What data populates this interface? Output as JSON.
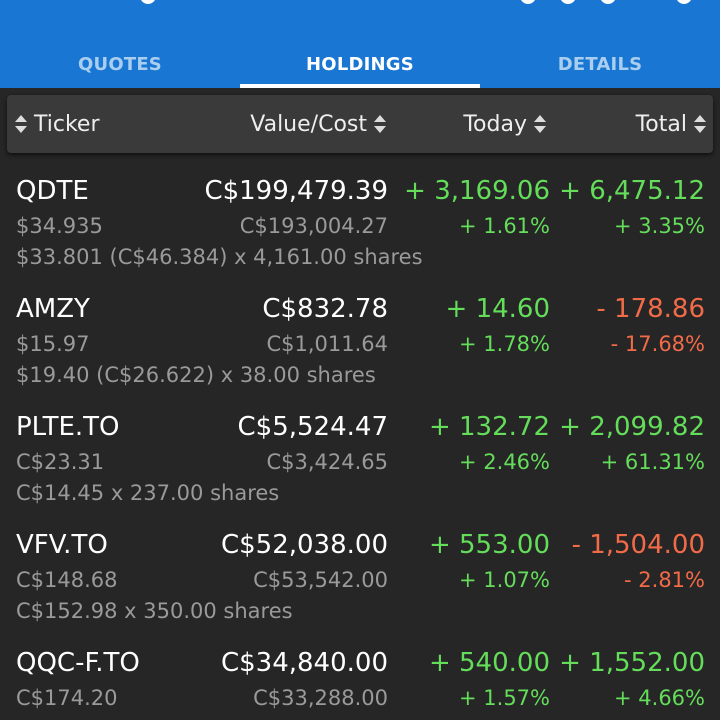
{
  "tabs": [
    {
      "label": "QUOTES",
      "active": false
    },
    {
      "label": "HOLDINGS",
      "active": true
    },
    {
      "label": "DETAILS",
      "active": false
    }
  ],
  "header": {
    "ticker": "Ticker",
    "value_cost": "Value/Cost",
    "today": "Today",
    "total": "Total"
  },
  "colors": {
    "appbar": "#1976d2",
    "positive": "#64dd5a",
    "negative": "#f26b48",
    "background": "#262626"
  },
  "holdings": [
    {
      "ticker": "QDTE",
      "value": "C$199,479.39",
      "price": "$34.935",
      "cost": "C$193,004.27",
      "today": "+ 3,169.06",
      "today_pct": "+ 1.61%",
      "today_dir": "pos",
      "total": "+ 6,475.12",
      "total_pct": "+ 3.35%",
      "total_dir": "pos",
      "shares": "$33.801 (C$46.384) x 4,161.00 shares"
    },
    {
      "ticker": "AMZY",
      "value": "C$832.78",
      "price": "$15.97",
      "cost": "C$1,011.64",
      "today": "+ 14.60",
      "today_pct": "+ 1.78%",
      "today_dir": "pos",
      "total": "- 178.86",
      "total_pct": "- 17.68%",
      "total_dir": "neg",
      "shares": "$19.40 (C$26.622) x 38.00 shares"
    },
    {
      "ticker": "PLTE.TO",
      "value": "C$5,524.47",
      "price": "C$23.31",
      "cost": "C$3,424.65",
      "today": "+ 132.72",
      "today_pct": "+ 2.46%",
      "today_dir": "pos",
      "total": "+ 2,099.82",
      "total_pct": "+ 61.31%",
      "total_dir": "pos",
      "shares": "C$14.45 x 237.00 shares"
    },
    {
      "ticker": "VFV.TO",
      "value": "C$52,038.00",
      "price": "C$148.68",
      "cost": "C$53,542.00",
      "today": "+ 553.00",
      "today_pct": "+ 1.07%",
      "today_dir": "pos",
      "total": "- 1,504.00",
      "total_pct": "- 2.81%",
      "total_dir": "neg",
      "shares": "C$152.98 x 350.00 shares"
    },
    {
      "ticker": "QQC-F.TO",
      "value": "C$34,840.00",
      "price": "C$174.20",
      "cost": "C$33,288.00",
      "today": "+ 540.00",
      "today_pct": "+ 1.57%",
      "today_dir": "pos",
      "total": "+ 1,552.00",
      "total_pct": "+ 4.66%",
      "total_dir": "pos",
      "shares": ""
    }
  ]
}
